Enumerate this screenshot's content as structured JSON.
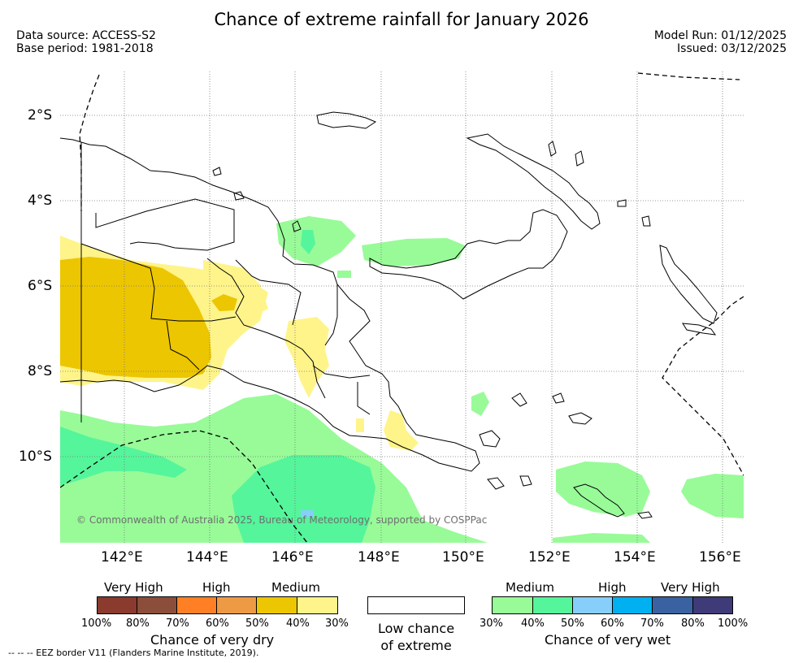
{
  "title": "Chance of extreme rainfall for January 2026",
  "data_source": "Data source: ACCESS-S2",
  "base_period": "Base period: 1981-2018",
  "model_run": "Model Run: 01/12/2025",
  "issued": "Issued: 03/12/2025",
  "copyright": "© Commonwealth of Australia 2025, Bureau of Meteorology, supported by COSPPac",
  "lat_labels": [
    "2°S",
    "4°S",
    "6°S",
    "8°S",
    "10°S"
  ],
  "lon_labels": [
    "142°E",
    "144°E",
    "146°E",
    "148°E",
    "150°E",
    "152°E",
    "154°E",
    "156°E"
  ],
  "legend": {
    "dry": {
      "categories": [
        "Very High",
        "High",
        "Medium"
      ],
      "colors": [
        "#8b3a2e",
        "#8b4e3a",
        "#ff8024",
        "#ee9a45",
        "#ecc600",
        "#fff48a"
      ],
      "ticks": [
        "100%",
        "80%",
        "70%",
        "60%",
        "50%",
        "40%",
        "30%"
      ],
      "caption": "Chance of very dry"
    },
    "neutral": {
      "line1": "Low chance",
      "line2": "of extreme",
      "color": "#ffffff"
    },
    "wet": {
      "categories": [
        "Medium",
        "High",
        "Very High"
      ],
      "colors": [
        "#98fb98",
        "#55f59b",
        "#87cefa",
        "#00b0f0",
        "#3a62a0",
        "#3f3a78"
      ],
      "ticks": [
        "30%",
        "40%",
        "50%",
        "60%",
        "70%",
        "80%",
        "100%"
      ],
      "caption": "Chance of very wet"
    }
  },
  "eez_note": "--  --  -- EEZ border V11 (Flanders Marine Institute, 2019)."
}
